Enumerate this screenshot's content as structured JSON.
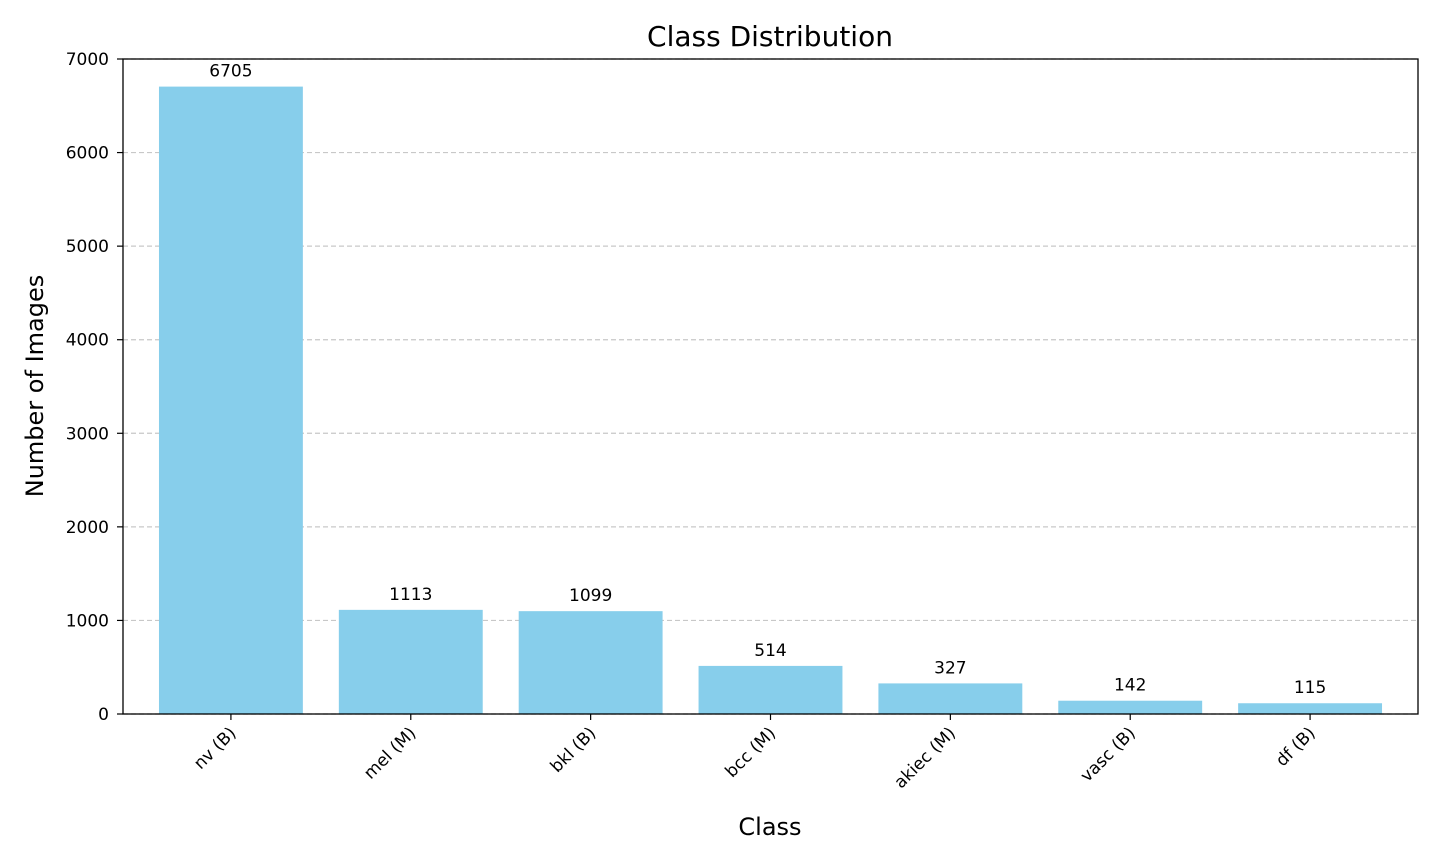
{
  "chart_data": {
    "type": "bar",
    "title": "Class Distribution",
    "xlabel": "Class",
    "ylabel": "Number of Images",
    "categories": [
      "nv (B)",
      "mel (M)",
      "bkl (B)",
      "bcc (M)",
      "akiec (M)",
      "vasc (B)",
      "df (B)"
    ],
    "values": [
      6705,
      1113,
      1099,
      514,
      327,
      142,
      115
    ],
    "ylim": [
      0,
      7000
    ],
    "yticks": [
      0,
      1000,
      2000,
      3000,
      4000,
      5000,
      6000,
      7000
    ],
    "ytick_labels": [
      "0",
      "1000",
      "2000",
      "3000",
      "4000",
      "5000",
      "6000",
      "7000"
    ],
    "grid": "horizontal dashed",
    "legend": "none",
    "colors": {
      "bar": "#87ceeb",
      "grid": "#c8c8c8",
      "axis": "#000000"
    }
  }
}
